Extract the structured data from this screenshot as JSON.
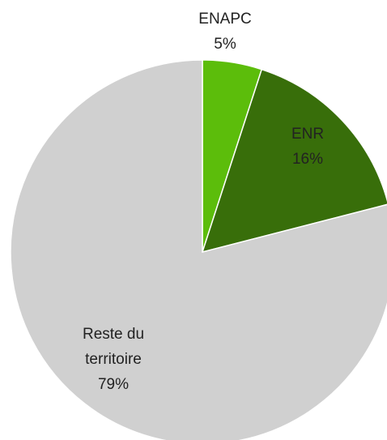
{
  "chart_data": {
    "type": "pie",
    "categories": [
      "ENAPC",
      "ENR",
      "Reste du territoire"
    ],
    "values": [
      5,
      16,
      79
    ],
    "value_labels": [
      "5%",
      "16%",
      "79%"
    ],
    "colors": [
      "#5cbd0b",
      "#386e0a",
      "#d0d0d0"
    ]
  }
}
